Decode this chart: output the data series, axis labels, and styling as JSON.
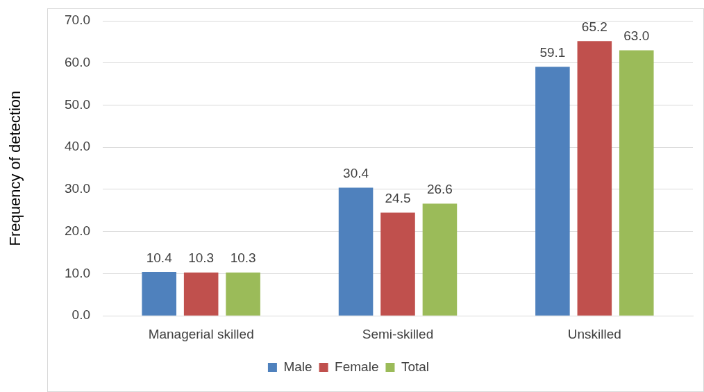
{
  "chart_data": {
    "type": "bar",
    "ylabel": "Frequency of detection",
    "categories": [
      "Managerial skilled",
      "Semi-skilled",
      "Unskilled"
    ],
    "series": [
      {
        "name": "Male",
        "color": "#4f81bd",
        "values": [
          10.4,
          30.4,
          59.1
        ],
        "value_labels": [
          "10.4",
          "30.4",
          "59.1"
        ]
      },
      {
        "name": "Female",
        "color": "#c0504d",
        "values": [
          10.3,
          24.5,
          65.2
        ],
        "value_labels": [
          "10.3",
          "24.5",
          "65.2"
        ]
      },
      {
        "name": "Total",
        "color": "#9bbb59",
        "values": [
          10.3,
          26.6,
          63.0
        ],
        "value_labels": [
          "10.3",
          "26.6",
          "63.0"
        ]
      }
    ],
    "ylim": [
      0,
      70
    ],
    "yticks": [
      {
        "value": 0,
        "label": "0.0"
      },
      {
        "value": 10,
        "label": "10.0"
      },
      {
        "value": 20,
        "label": "20.0"
      },
      {
        "value": 30,
        "label": "30.0"
      },
      {
        "value": 40,
        "label": "40.0"
      },
      {
        "value": 50,
        "label": "50.0"
      },
      {
        "value": 60,
        "label": "60.0"
      },
      {
        "value": 70,
        "label": "70.0"
      }
    ],
    "grid": "y",
    "legend": "bottom"
  }
}
